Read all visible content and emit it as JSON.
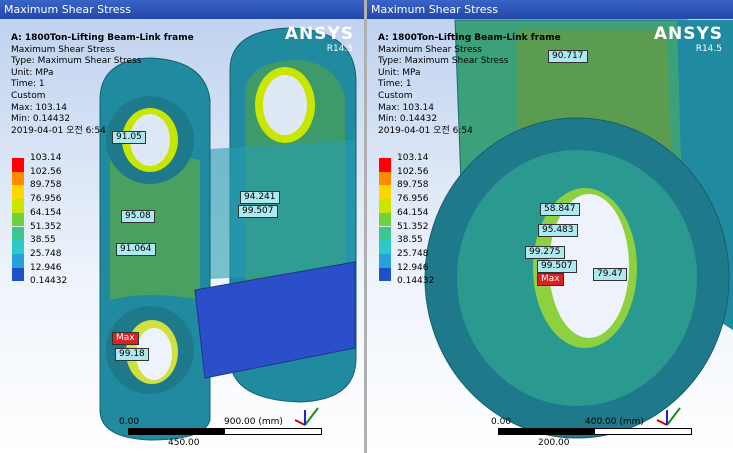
{
  "panels": [
    {
      "title": "Maximum Shear Stress",
      "info": [
        "A: 1800Ton-Lifting Beam-Link frame",
        "Maximum Shear Stress",
        "Type: Maximum Shear Stress",
        "Unit: MPa",
        "Time: 1",
        "Custom",
        "Max: 103.14",
        "Min: 0.14432",
        "2019-04-01 오전 6:54"
      ],
      "logo": "ANSYS",
      "version": "R14.5",
      "legend": {
        "labels": [
          "103.14",
          "102.56",
          "89.758",
          "76.956",
          "64.154",
          "51.352",
          "38.55",
          "25.748",
          "12.946",
          "0.14432"
        ],
        "colors": [
          "#ff0000",
          "#ff8c00",
          "#ffd700",
          "#c8e600",
          "#6fd23c",
          "#3cc88c",
          "#2dc8c8",
          "#28a0dc",
          "#1e50c8"
        ]
      },
      "probes": [
        "91.05",
        "95.08",
        "91.064",
        "94.241",
        "99.507",
        "Max",
        "99.18"
      ],
      "scale": {
        "start": "0.00",
        "end": "900.00 (mm)",
        "mid": "450.00"
      }
    },
    {
      "title": "Maximum Shear Stress",
      "info": [
        "A: 1800Ton-Lifting Beam-Link frame",
        "Maximum Shear Stress",
        "Type: Maximum Shear Stress",
        "Unit: MPa",
        "Time: 1",
        "Custom",
        "Max: 103.14",
        "Min: 0.14432",
        "2019-04-01 오전 6:54"
      ],
      "logo": "ANSYS",
      "version": "R14.5",
      "legend": {
        "labels": [
          "103.14",
          "102.56",
          "89.758",
          "76.956",
          "64.154",
          "51.352",
          "38.55",
          "25.748",
          "12.946",
          "0.14432"
        ],
        "colors": [
          "#ff0000",
          "#ff8c00",
          "#ffd700",
          "#c8e600",
          "#6fd23c",
          "#3cc88c",
          "#2dc8c8",
          "#28a0dc",
          "#1e50c8"
        ]
      },
      "probes": [
        "90.717",
        "58.847",
        "95.483",
        "99.275",
        "99.507",
        "79.47",
        "Max"
      ],
      "scale": {
        "start": "0.00",
        "end": "400.00 (mm)",
        "mid": "200.00"
      }
    }
  ]
}
